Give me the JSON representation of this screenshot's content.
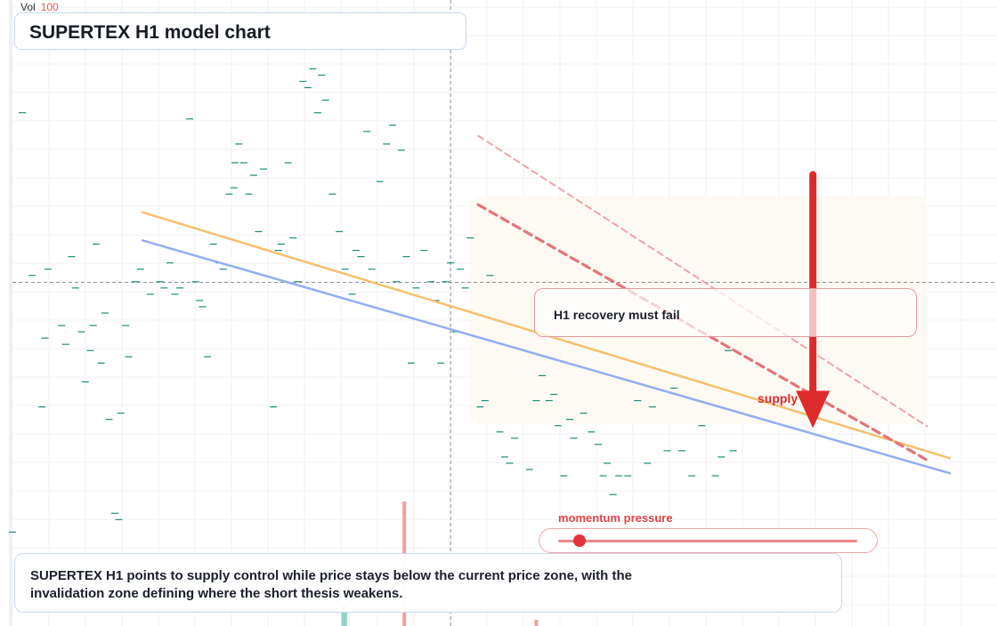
{
  "header": {
    "vol_label": "Vol",
    "vol_value": "100",
    "title": "SUPERTEX H1 model chart"
  },
  "callout": {
    "text": "H1 recovery must fail"
  },
  "arrow": {
    "label": "supply g"
  },
  "meter": {
    "label": "momentum pressure",
    "value": 0.07
  },
  "summary": {
    "text": "SUPERTEX H1 points to supply control while price stays below the current price zone, with the invalidation zone defining where the short thesis weakens."
  },
  "colors": {
    "bearish": "#dd2b2b",
    "orange_line": "#f5c06e",
    "blue_line": "#93aef0",
    "candle": "#1f8a7c",
    "volume_red": "#f0a0a0",
    "volume_teal": "#8fd3c8",
    "zone": "#fdf8f1"
  },
  "chart_data": {
    "type": "candlestick",
    "title": "SUPERTEX H1 model chart",
    "x_range": [
      0,
      100
    ],
    "y_range": [
      0,
      100
    ],
    "grid": true,
    "crosshair": {
      "x": 44.5,
      "y": 54.9
    },
    "candles": [
      [
        0,
        15
      ],
      [
        1,
        82
      ],
      [
        2,
        56
      ],
      [
        3,
        35
      ],
      [
        3.3,
        46
      ],
      [
        3.6,
        57
      ],
      [
        5,
        48
      ],
      [
        5.4,
        45
      ],
      [
        6,
        59
      ],
      [
        6.4,
        54
      ],
      [
        7,
        47
      ],
      [
        7.4,
        39
      ],
      [
        7.9,
        44
      ],
      [
        8.2,
        48
      ],
      [
        8.5,
        61
      ],
      [
        9,
        42
      ],
      [
        9.4,
        50
      ],
      [
        9.8,
        33
      ],
      [
        10.4,
        18
      ],
      [
        10.8,
        17
      ],
      [
        11,
        34
      ],
      [
        11.5,
        48
      ],
      [
        11.8,
        43
      ],
      [
        12.5,
        55
      ],
      [
        13,
        57
      ],
      [
        14,
        53
      ],
      [
        15,
        55
      ],
      [
        15.4,
        54
      ],
      [
        16,
        58
      ],
      [
        16.5,
        53
      ],
      [
        17,
        54
      ],
      [
        18,
        81
      ],
      [
        18.6,
        55
      ],
      [
        19,
        52
      ],
      [
        19.3,
        51
      ],
      [
        19.8,
        43
      ],
      [
        20.4,
        61
      ],
      [
        21,
        58
      ],
      [
        21.4,
        57
      ],
      [
        22,
        69
      ],
      [
        22.5,
        70
      ],
      [
        22.6,
        74
      ],
      [
        23,
        77
      ],
      [
        23.5,
        74
      ],
      [
        24,
        69
      ],
      [
        24.5,
        72
      ],
      [
        25,
        63
      ],
      [
        25.5,
        73
      ],
      [
        26.5,
        35
      ],
      [
        27,
        60
      ],
      [
        27.3,
        61
      ],
      [
        28,
        74
      ],
      [
        28.5,
        62
      ],
      [
        29,
        55
      ],
      [
        29.5,
        87
      ],
      [
        30,
        86
      ],
      [
        30.5,
        89
      ],
      [
        31,
        82
      ],
      [
        31.4,
        88
      ],
      [
        31.8,
        84
      ],
      [
        32.5,
        69
      ],
      [
        33.2,
        63
      ],
      [
        33.8,
        57
      ],
      [
        34.5,
        53
      ],
      [
        34.9,
        60
      ],
      [
        35.4,
        59
      ],
      [
        36,
        79
      ],
      [
        36.5,
        57
      ],
      [
        37.3,
        71
      ],
      [
        38,
        77
      ],
      [
        38.6,
        80
      ],
      [
        39,
        55
      ],
      [
        39.5,
        76
      ],
      [
        40,
        59
      ],
      [
        40.5,
        42
      ],
      [
        41,
        54
      ],
      [
        41.8,
        60
      ],
      [
        42.5,
        55
      ],
      [
        43,
        52
      ],
      [
        43.5,
        42
      ],
      [
        44,
        55
      ],
      [
        44.5,
        58
      ],
      [
        45,
        47
      ],
      [
        45.5,
        57
      ],
      [
        46,
        54
      ],
      [
        46.5,
        62
      ],
      [
        47.5,
        35
      ],
      [
        48,
        36
      ],
      [
        48.5,
        56
      ],
      [
        49.5,
        31
      ],
      [
        50,
        27
      ],
      [
        50.5,
        26
      ],
      [
        51,
        30
      ],
      [
        52.5,
        25
      ],
      [
        53.2,
        36
      ],
      [
        53.8,
        40
      ],
      [
        54.5,
        36
      ],
      [
        55,
        37
      ],
      [
        55.4,
        32
      ],
      [
        56,
        24
      ],
      [
        56.6,
        33
      ],
      [
        57,
        30
      ],
      [
        58,
        34
      ],
      [
        58.8,
        31
      ],
      [
        59.5,
        29
      ],
      [
        60,
        24
      ],
      [
        60.4,
        26
      ],
      [
        61,
        21
      ],
      [
        61.6,
        24
      ],
      [
        62.5,
        24
      ],
      [
        63.5,
        36
      ],
      [
        64.5,
        26
      ],
      [
        65,
        35
      ],
      [
        66.5,
        28
      ],
      [
        67.2,
        38
      ],
      [
        68,
        28
      ],
      [
        69,
        24
      ],
      [
        70,
        32
      ],
      [
        71.4,
        24
      ],
      [
        72,
        27
      ],
      [
        72.7,
        44
      ],
      [
        73.2,
        28
      ]
    ],
    "trend_lines": [
      {
        "name": "orange",
        "from": [
          13.2,
          66.1
        ],
        "to": [
          95.2,
          26.8
        ]
      },
      {
        "name": "blue",
        "from": [
          13.2,
          61.6
        ],
        "to": [
          95.2,
          24.4
        ]
      }
    ],
    "projection_lines": [
      {
        "name": "upper dashed",
        "from": [
          47.3,
          78.3
        ],
        "to": [
          92.9,
          31.9
        ]
      },
      {
        "name": "lower dashed",
        "from": [
          47.3,
          67.3
        ],
        "to": [
          92.9,
          26.5
        ]
      }
    ],
    "zone": {
      "x": [
        46.5,
        92.9
      ],
      "y": [
        32.3,
        68.6
      ]
    },
    "target_arrow": {
      "x": 81.3,
      "from_y": 72.1,
      "to_y": 31.6
    },
    "volume": [
      {
        "x": 39.8,
        "value": 100,
        "color": "red"
      },
      {
        "x": 33.8,
        "value": 18,
        "color": "teal"
      },
      {
        "x": 33.6,
        "value": 18,
        "color": "teal"
      },
      {
        "x": 53.2,
        "value": 5,
        "color": "red"
      }
    ]
  }
}
